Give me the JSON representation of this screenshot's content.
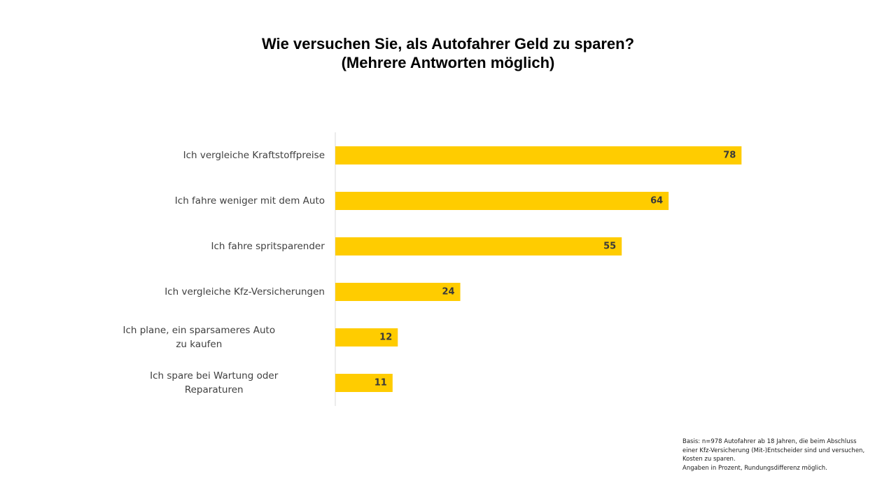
{
  "title": {
    "line1": "Wie versuchen Sie, als Autofahrer Geld zu sparen?",
    "line2": "(Mehrere Antworten möglich)"
  },
  "colors": {
    "bar": "#FFCC00",
    "axis": "#D9D9D9",
    "label": "#404040",
    "value_label": "#3A3A3A"
  },
  "chart_data": {
    "type": "bar",
    "orientation": "horizontal",
    "categories": [
      [
        "Ich vergleiche Kraftstoffpreise"
      ],
      [
        "Ich fahre weniger mit dem Auto"
      ],
      [
        "Ich fahre spritsparender"
      ],
      [
        "Ich vergleiche Kfz-Versicherungen"
      ],
      [
        "Ich plane, ein sparsameres Auto",
        "zu kaufen"
      ],
      [
        "Ich spare bei Wartung oder",
        "Reparaturen"
      ]
    ],
    "values": [
      78,
      64,
      55,
      24,
      12,
      11
    ],
    "xlim": [
      0,
      100
    ],
    "grid": false,
    "legend": "none",
    "data_labels": true
  },
  "footnote": {
    "lines": [
      "Basis: n=978 Autofahrer ab 18 Jahren, die beim Abschluss",
      "einer Kfz-Versicherung (Mit-)Entscheider sind und versuchen,",
      "Kosten zu sparen.",
      "Angaben in Prozent, Rundungsdifferenz möglich."
    ]
  }
}
